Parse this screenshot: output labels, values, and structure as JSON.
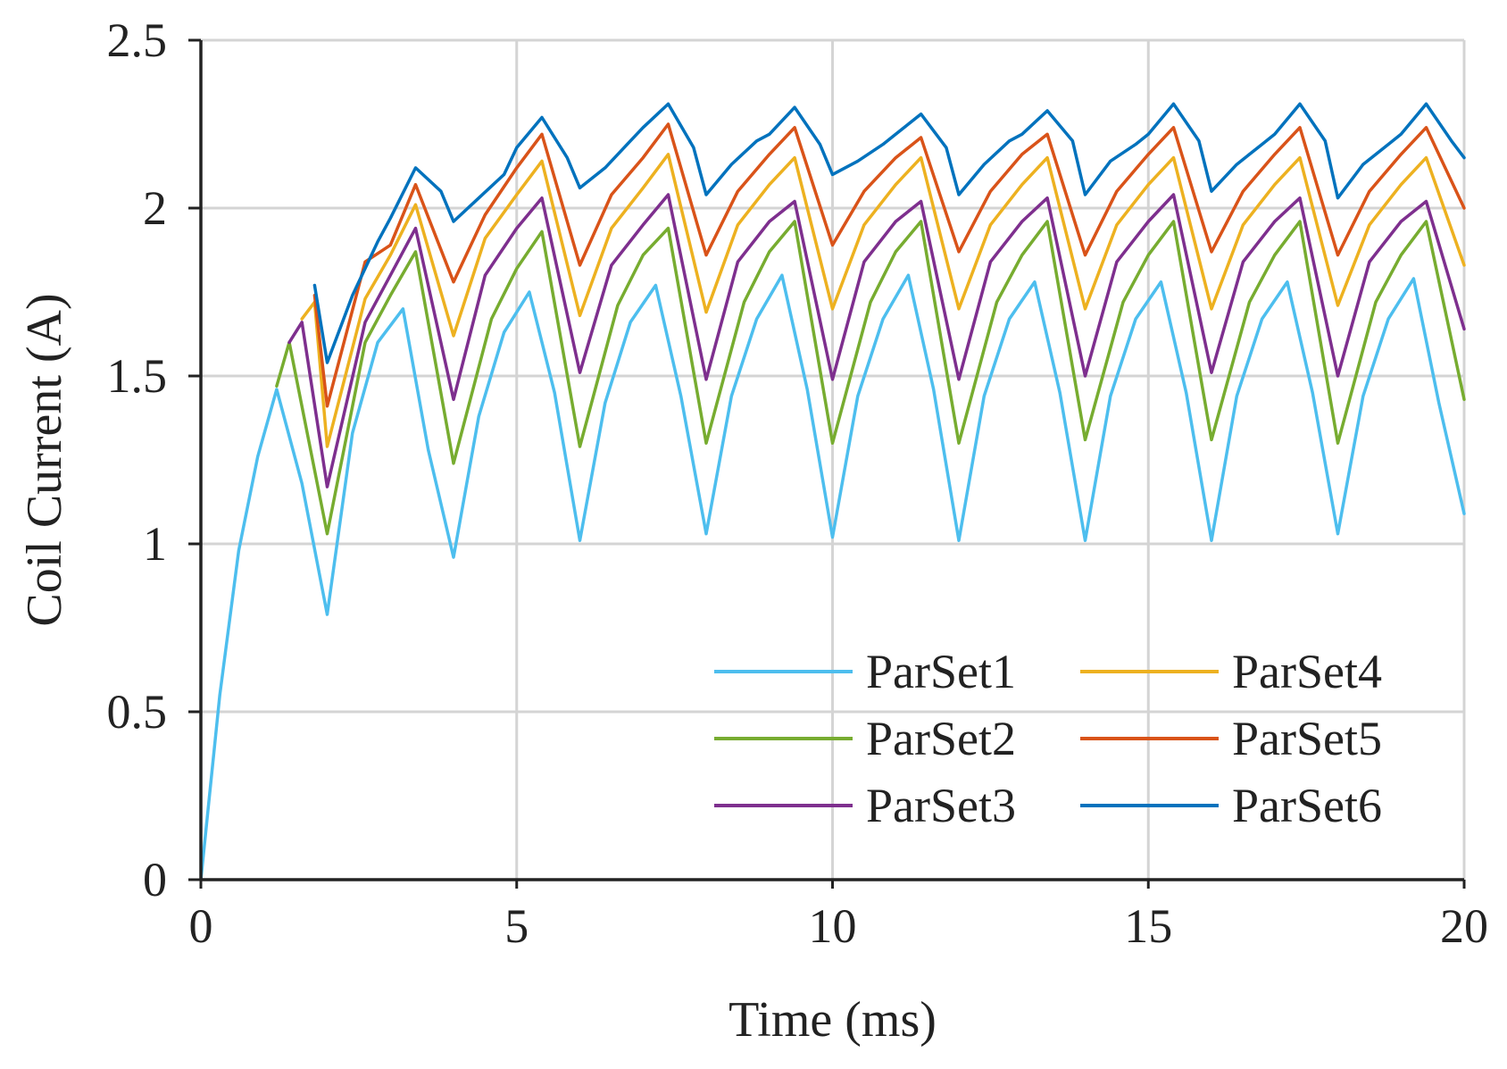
{
  "chart_data": {
    "type": "line",
    "title": "",
    "xlabel": "Time (ms)",
    "ylabel": "Coil Current (A)",
    "xlim": [
      0,
      20
    ],
    "ylim": [
      0,
      2.5
    ],
    "x_ticks": [
      0,
      5,
      10,
      15,
      20
    ],
    "x_tick_labels": [
      "0",
      "5",
      "10",
      "15",
      "20"
    ],
    "y_ticks": [
      0,
      0.5,
      1,
      1.5,
      2,
      2.5
    ],
    "y_tick_labels": [
      "0",
      "0.5",
      "1",
      "1.5",
      "2",
      "2.5"
    ],
    "grid": true,
    "legend_position": "bottom-right",
    "legend_columns": 2,
    "series": [
      {
        "name": "ParSet1",
        "color": "#4dbeee",
        "x": [
          0,
          0.3,
          0.6,
          0.9,
          1.2,
          1.6,
          2.0,
          2.4,
          2.8,
          3.2,
          3.6,
          4.0,
          4.4,
          4.8,
          5.2,
          5.6,
          6.0,
          6.4,
          6.8,
          7.2,
          7.6,
          8.0,
          8.4,
          8.8,
          9.2,
          9.6,
          10.0,
          10.4,
          10.8,
          11.2,
          11.6,
          12.0,
          12.4,
          12.8,
          13.2,
          13.6,
          14.0,
          14.4,
          14.8,
          15.2,
          15.6,
          16.0,
          16.4,
          16.8,
          17.2,
          17.6,
          18.0,
          18.4,
          18.8,
          19.2,
          19.6,
          20.0
        ],
        "y": [
          0,
          0.55,
          0.98,
          1.26,
          1.46,
          1.18,
          0.79,
          1.33,
          1.6,
          1.7,
          1.28,
          0.96,
          1.38,
          1.63,
          1.75,
          1.45,
          1.01,
          1.42,
          1.66,
          1.77,
          1.44,
          1.03,
          1.44,
          1.67,
          1.8,
          1.46,
          1.02,
          1.44,
          1.67,
          1.8,
          1.46,
          1.01,
          1.44,
          1.67,
          1.78,
          1.45,
          1.01,
          1.44,
          1.67,
          1.78,
          1.45,
          1.01,
          1.44,
          1.67,
          1.78,
          1.45,
          1.03,
          1.44,
          1.67,
          1.79,
          1.42,
          1.09
        ]
      },
      {
        "name": "ParSet2",
        "color": "#77ac30",
        "x": [
          1.2,
          1.4,
          2.0,
          2.6,
          3.0,
          3.4,
          4.0,
          4.6,
          5.0,
          5.4,
          6.0,
          6.6,
          7.0,
          7.4,
          8.0,
          8.6,
          9.0,
          9.4,
          10.0,
          10.6,
          11.0,
          11.4,
          12.0,
          12.6,
          13.0,
          13.4,
          14.0,
          14.6,
          15.0,
          15.4,
          16.0,
          16.6,
          17.0,
          17.4,
          18.0,
          18.6,
          19.0,
          19.4,
          20.0
        ],
        "y": [
          1.47,
          1.6,
          1.03,
          1.6,
          1.74,
          1.87,
          1.24,
          1.67,
          1.82,
          1.93,
          1.29,
          1.71,
          1.86,
          1.94,
          1.3,
          1.72,
          1.87,
          1.96,
          1.3,
          1.72,
          1.87,
          1.96,
          1.3,
          1.72,
          1.86,
          1.96,
          1.31,
          1.72,
          1.86,
          1.96,
          1.31,
          1.72,
          1.86,
          1.96,
          1.3,
          1.72,
          1.86,
          1.96,
          1.43
        ]
      },
      {
        "name": "ParSet3",
        "color": "#7e2f8e",
        "x": [
          1.4,
          1.6,
          2.0,
          2.6,
          3.0,
          3.4,
          4.0,
          4.5,
          5.0,
          5.4,
          6.0,
          6.5,
          7.0,
          7.4,
          8.0,
          8.5,
          9.0,
          9.4,
          10.0,
          10.5,
          11.0,
          11.4,
          12.0,
          12.5,
          13.0,
          13.4,
          14.0,
          14.5,
          15.0,
          15.4,
          16.0,
          16.5,
          17.0,
          17.4,
          18.0,
          18.5,
          19.0,
          19.4,
          20.0
        ],
        "y": [
          1.6,
          1.66,
          1.17,
          1.66,
          1.8,
          1.94,
          1.43,
          1.8,
          1.94,
          2.03,
          1.51,
          1.83,
          1.95,
          2.04,
          1.49,
          1.84,
          1.96,
          2.02,
          1.49,
          1.84,
          1.96,
          2.02,
          1.49,
          1.84,
          1.96,
          2.03,
          1.5,
          1.84,
          1.96,
          2.04,
          1.51,
          1.84,
          1.96,
          2.03,
          1.5,
          1.84,
          1.96,
          2.02,
          1.64
        ]
      },
      {
        "name": "ParSet4",
        "color": "#edb120",
        "x": [
          1.6,
          1.8,
          2.0,
          2.6,
          3.0,
          3.4,
          4.0,
          4.5,
          5.0,
          5.4,
          6.0,
          6.5,
          7.0,
          7.4,
          8.0,
          8.5,
          9.0,
          9.4,
          10.0,
          10.5,
          11.0,
          11.4,
          12.0,
          12.5,
          13.0,
          13.4,
          14.0,
          14.5,
          15.0,
          15.4,
          16.0,
          16.5,
          17.0,
          17.4,
          18.0,
          18.5,
          19.0,
          19.4,
          20.0
        ],
        "y": [
          1.67,
          1.72,
          1.29,
          1.73,
          1.86,
          2.01,
          1.62,
          1.91,
          2.04,
          2.14,
          1.68,
          1.94,
          2.06,
          2.16,
          1.69,
          1.95,
          2.07,
          2.15,
          1.7,
          1.95,
          2.07,
          2.15,
          1.7,
          1.95,
          2.07,
          2.15,
          1.7,
          1.95,
          2.07,
          2.15,
          1.7,
          1.95,
          2.07,
          2.15,
          1.71,
          1.95,
          2.07,
          2.15,
          1.83
        ]
      },
      {
        "name": "ParSet5",
        "color": "#d95319",
        "x": [
          1.8,
          2.0,
          2.6,
          3.0,
          3.4,
          4.0,
          4.5,
          5.0,
          5.4,
          6.0,
          6.5,
          7.0,
          7.4,
          8.0,
          8.5,
          9.0,
          9.4,
          10.0,
          10.5,
          11.0,
          11.4,
          12.0,
          12.5,
          13.0,
          13.4,
          14.0,
          14.5,
          15.0,
          15.4,
          16.0,
          16.5,
          17.0,
          17.4,
          18.0,
          18.5,
          19.0,
          19.4,
          20.0
        ],
        "y": [
          1.74,
          1.41,
          1.84,
          1.89,
          2.07,
          1.78,
          1.98,
          2.12,
          2.22,
          1.83,
          2.04,
          2.15,
          2.25,
          1.86,
          2.05,
          2.16,
          2.24,
          1.89,
          2.05,
          2.15,
          2.21,
          1.87,
          2.05,
          2.16,
          2.22,
          1.86,
          2.05,
          2.16,
          2.24,
          1.87,
          2.05,
          2.16,
          2.24,
          1.86,
          2.05,
          2.16,
          2.24,
          2.0
        ]
      },
      {
        "name": "ParSet6",
        "color": "#0072bd",
        "x": [
          1.8,
          2.0,
          2.4,
          2.8,
          3.0,
          3.4,
          3.8,
          4.0,
          4.4,
          4.8,
          5.0,
          5.4,
          5.8,
          6.0,
          6.4,
          6.8,
          7.0,
          7.4,
          7.8,
          8.0,
          8.4,
          8.8,
          9.0,
          9.4,
          9.8,
          10.0,
          10.4,
          10.8,
          11.0,
          11.4,
          11.8,
          12.0,
          12.4,
          12.8,
          13.0,
          13.4,
          13.8,
          14.0,
          14.4,
          14.8,
          15.0,
          15.4,
          15.8,
          16.0,
          16.4,
          16.8,
          17.0,
          17.4,
          17.8,
          18.0,
          18.4,
          18.8,
          19.0,
          19.4,
          19.8,
          20.0
        ],
        "y": [
          1.77,
          1.54,
          1.74,
          1.9,
          1.97,
          2.12,
          2.05,
          1.96,
          2.03,
          2.1,
          2.18,
          2.27,
          2.15,
          2.06,
          2.12,
          2.2,
          2.24,
          2.31,
          2.18,
          2.04,
          2.13,
          2.2,
          2.22,
          2.3,
          2.19,
          2.1,
          2.14,
          2.19,
          2.22,
          2.28,
          2.18,
          2.04,
          2.13,
          2.2,
          2.22,
          2.29,
          2.2,
          2.04,
          2.14,
          2.19,
          2.22,
          2.31,
          2.2,
          2.05,
          2.13,
          2.19,
          2.22,
          2.31,
          2.2,
          2.03,
          2.13,
          2.19,
          2.22,
          2.31,
          2.2,
          2.15
        ]
      }
    ]
  }
}
